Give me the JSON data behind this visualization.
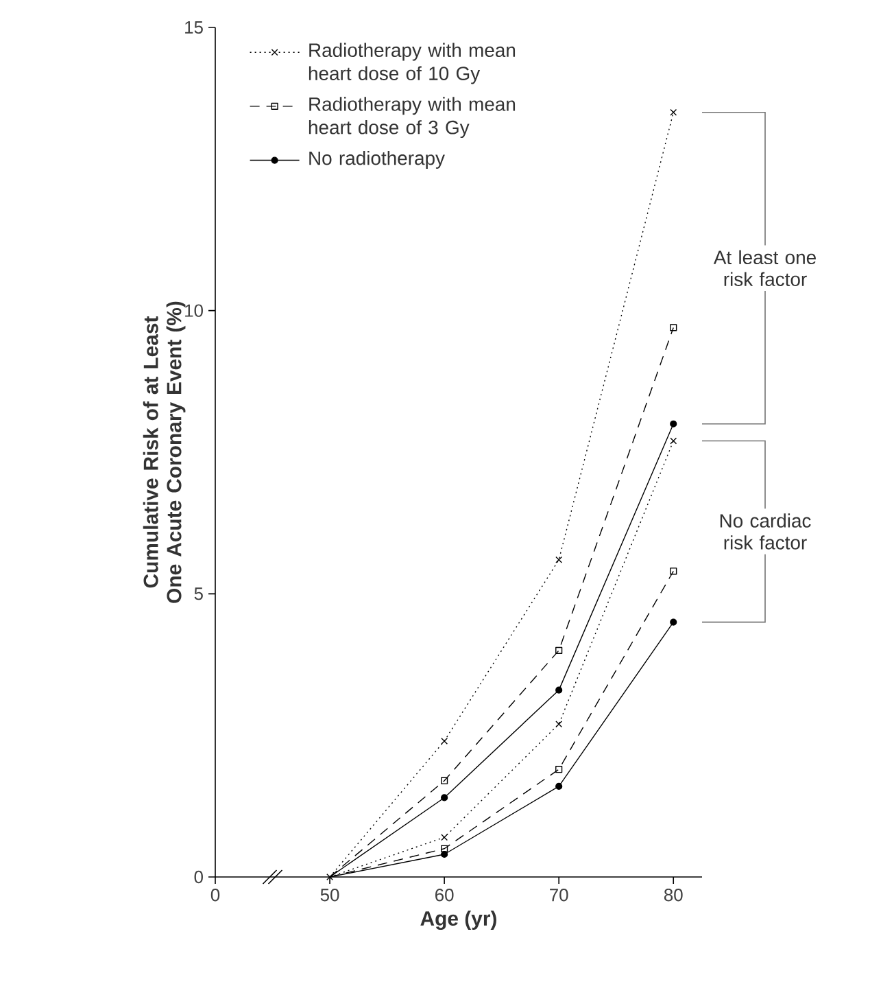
{
  "chart_data": {
    "type": "line",
    "xlabel": "Age (yr)",
    "ylabel": "Cumulative Risk of at Least One Acute Coronary Event (%)",
    "categories": [
      "0",
      "50",
      "60",
      "70",
      "80"
    ],
    "ylim": [
      0,
      15
    ],
    "yticks": [
      0,
      5,
      10,
      15
    ],
    "legend": "top left",
    "grid": false,
    "series": [
      {
        "name": "Radiotherapy with mean heart dose of 10 Gy",
        "color": "#000000",
        "marker": "cross",
        "line_style": "dotted",
        "values": [
          null,
          0,
          2.4,
          5.6,
          13.5
        ]
      },
      {
        "name": "Radiotherapy with mean heart dose of 3 Gy",
        "color": "#000000",
        "marker": "square",
        "line_style": "dashed",
        "values": [
          null,
          0,
          1.7,
          4.0,
          9.7
        ]
      },
      {
        "name": "No radiotherapy",
        "color": "#000000",
        "marker": "circle",
        "line_style": "solid",
        "values": [
          null,
          0,
          1.4,
          3.3,
          8.0
        ]
      },
      {
        "color": "#000000",
        "marker": "cross",
        "line_style": "dotted",
        "values": [
          null,
          0,
          0.7,
          2.7,
          7.7
        ]
      },
      {
        "color": "#000000",
        "marker": "square",
        "line_style": "dashed",
        "values": [
          null,
          0,
          0.5,
          1.9,
          5.4
        ]
      },
      {
        "color": "#000000",
        "marker": "circle",
        "line_style": "solid",
        "values": [
          null,
          0,
          0.4,
          1.6,
          4.5
        ]
      }
    ],
    "annotations": [
      "At least one risk factor",
      "No cardiac risk factor"
    ]
  }
}
